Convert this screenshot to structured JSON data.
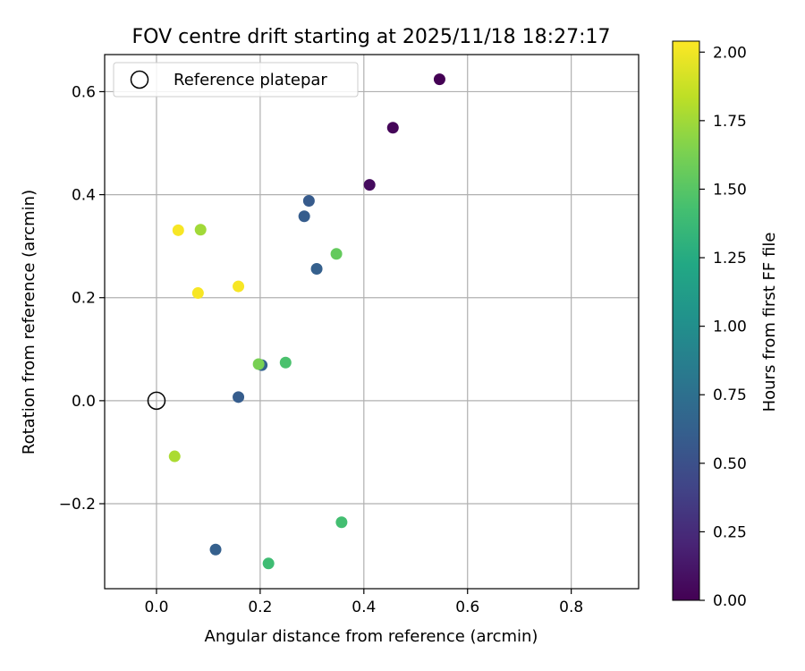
{
  "chart_data": {
    "type": "scatter",
    "title": "FOV centre drift starting at 2025/11/18 18:27:17",
    "xlabel": "Angular distance from reference (arcmin)",
    "ylabel": "Rotation from reference (arcmin)",
    "xlim": [
      -0.1,
      0.93
    ],
    "ylim": [
      -0.365,
      0.672
    ],
    "xticks": [
      0.0,
      0.2,
      0.4,
      0.6,
      0.8
    ],
    "xtick_labels": [
      "0.0",
      "0.2",
      "0.4",
      "0.6",
      "0.8"
    ],
    "yticks": [
      -0.2,
      0.0,
      0.2,
      0.4,
      0.6
    ],
    "ytick_labels": [
      "−0.2",
      "0.0",
      "0.2",
      "0.4",
      "0.6"
    ],
    "grid": true,
    "legend": {
      "position": "top-left",
      "entries": [
        {
          "label": "Reference platepar",
          "marker": "open-circle"
        }
      ]
    },
    "reference_point": {
      "x": 0.0,
      "y": 0.0,
      "label": "Reference platepar"
    },
    "colorbar": {
      "label": "Hours from first FF file",
      "range": [
        0.0,
        2.04
      ],
      "colormap": "viridis",
      "ticks": [
        0.0,
        0.25,
        0.5,
        0.75,
        1.0,
        1.25,
        1.5,
        1.75,
        2.0
      ],
      "tick_labels": [
        "0.00",
        "0.25",
        "0.50",
        "0.75",
        "1.00",
        "1.25",
        "1.50",
        "1.75",
        "2.00"
      ]
    },
    "points": [
      {
        "x": 0.546,
        "y": 0.624,
        "hours": 0.0
      },
      {
        "x": 0.456,
        "y": 0.53,
        "hours": 0.03
      },
      {
        "x": 0.411,
        "y": 0.419,
        "hours": 0.06
      },
      {
        "x": 0.294,
        "y": 0.388,
        "hours": 0.58
      },
      {
        "x": 0.285,
        "y": 0.358,
        "hours": 0.6
      },
      {
        "x": 0.309,
        "y": 0.256,
        "hours": 0.62
      },
      {
        "x": 0.203,
        "y": 0.069,
        "hours": 0.64
      },
      {
        "x": 0.158,
        "y": 0.007,
        "hours": 0.6
      },
      {
        "x": 0.114,
        "y": -0.289,
        "hours": 0.62
      },
      {
        "x": 0.216,
        "y": -0.316,
        "hours": 1.4
      },
      {
        "x": 0.357,
        "y": -0.236,
        "hours": 1.42
      },
      {
        "x": 0.249,
        "y": 0.074,
        "hours": 1.45
      },
      {
        "x": 0.347,
        "y": 0.285,
        "hours": 1.55
      },
      {
        "x": 0.197,
        "y": 0.071,
        "hours": 1.62
      },
      {
        "x": 0.085,
        "y": 0.332,
        "hours": 1.75
      },
      {
        "x": 0.035,
        "y": -0.108,
        "hours": 1.78
      },
      {
        "x": 0.042,
        "y": 0.331,
        "hours": 2.02
      },
      {
        "x": 0.08,
        "y": 0.209,
        "hours": 2.02
      },
      {
        "x": 0.158,
        "y": 0.222,
        "hours": 2.02
      }
    ]
  }
}
